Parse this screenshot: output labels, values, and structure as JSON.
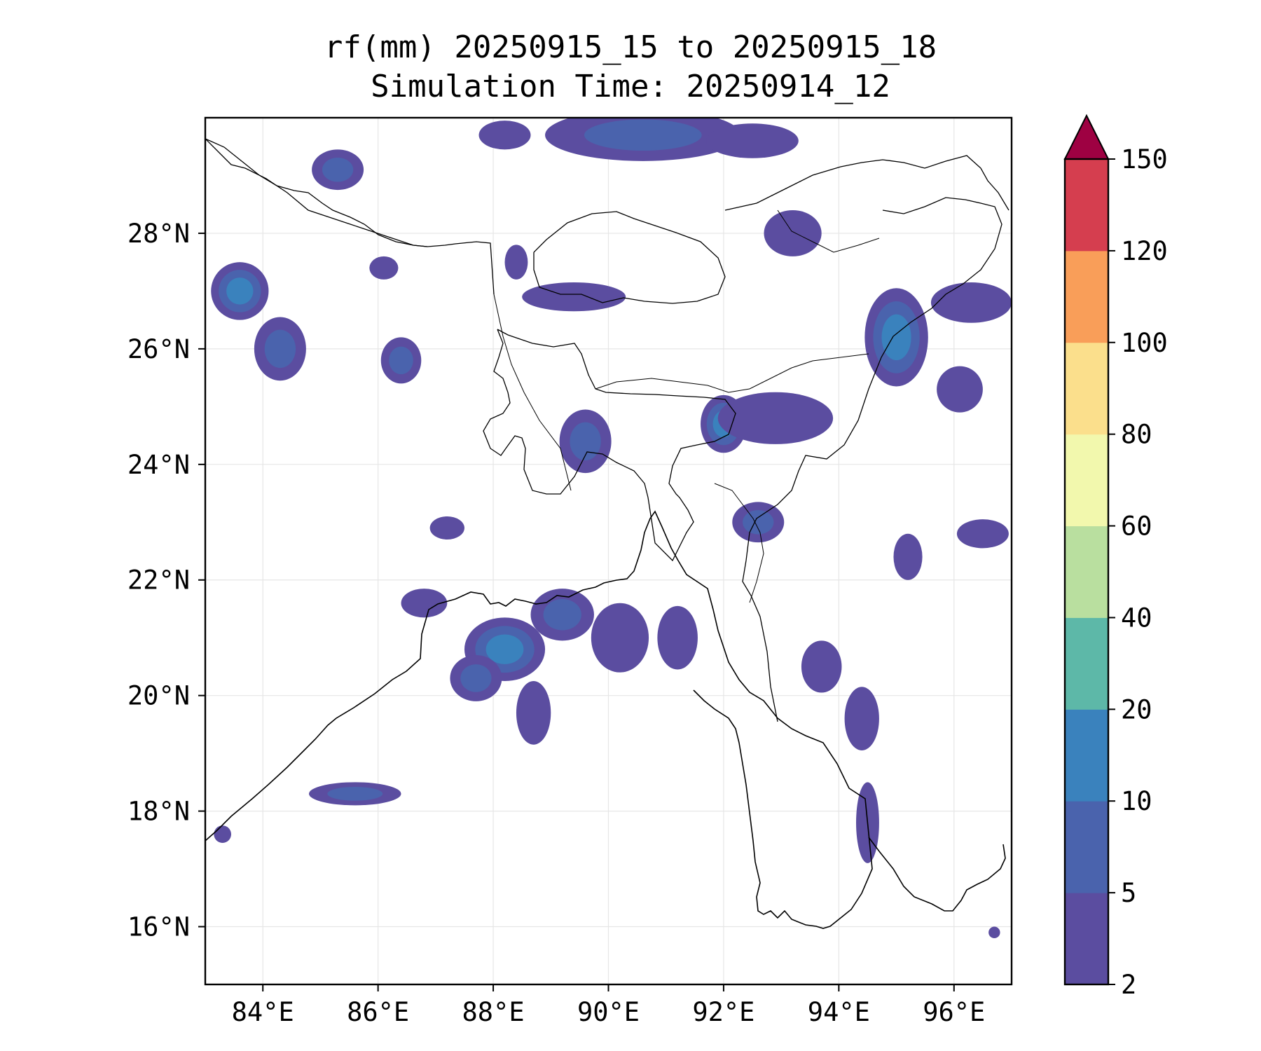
{
  "title": "rf(mm) 20250915_15 to 20250915_18",
  "subtitle": "Simulation Time: 20250914_12",
  "map": {
    "lon_range": [
      83,
      97
    ],
    "lat_range": [
      15,
      30
    ],
    "lon_ticks": [
      "84°E",
      "86°E",
      "88°E",
      "90°E",
      "92°E",
      "94°E",
      "96°E"
    ],
    "lat_ticks": [
      "16°N",
      "18°N",
      "20°N",
      "22°N",
      "24°N",
      "26°N",
      "28°N"
    ],
    "gridlines": true
  },
  "colorbar": {
    "levels": [
      "2",
      "5",
      "10",
      "20",
      "40",
      "60",
      "80",
      "100",
      "120",
      "150"
    ],
    "colors": [
      "#5b4da0",
      "#4a63ad",
      "#3a82bd",
      "#5db8a8",
      "#b9df9f",
      "#f2f8ad",
      "#fbdf8c",
      "#f99e59",
      "#d53e4f"
    ],
    "extend_color": "#9e0142",
    "extend": "max"
  },
  "rain_cells": [
    {
      "lon": 85.3,
      "lat": 29.1,
      "rx": 0.45,
      "ry": 0.35,
      "level": 2
    },
    {
      "lon": 83.6,
      "lat": 27.0,
      "rx": 0.5,
      "ry": 0.5,
      "level": 3
    },
    {
      "lon": 84.3,
      "lat": 26.0,
      "rx": 0.45,
      "ry": 0.55,
      "level": 2
    },
    {
      "lon": 86.4,
      "lat": 25.8,
      "rx": 0.35,
      "ry": 0.4,
      "level": 2
    },
    {
      "lon": 86.1,
      "lat": 27.4,
      "rx": 0.25,
      "ry": 0.2,
      "level": 1
    },
    {
      "lon": 88.2,
      "lat": 29.7,
      "rx": 0.45,
      "ry": 0.25,
      "level": 1
    },
    {
      "lon": 90.6,
      "lat": 29.7,
      "rx": 1.7,
      "ry": 0.45,
      "level": 2
    },
    {
      "lon": 92.5,
      "lat": 29.6,
      "rx": 0.8,
      "ry": 0.3,
      "level": 1
    },
    {
      "lon": 89.4,
      "lat": 26.9,
      "rx": 0.9,
      "ry": 0.25,
      "level": 1
    },
    {
      "lon": 88.4,
      "lat": 27.5,
      "rx": 0.2,
      "ry": 0.3,
      "level": 1
    },
    {
      "lon": 89.6,
      "lat": 24.4,
      "rx": 0.45,
      "ry": 0.55,
      "level": 2
    },
    {
      "lon": 92.0,
      "lat": 24.7,
      "rx": 0.4,
      "ry": 0.5,
      "level": 3
    },
    {
      "lon": 92.9,
      "lat": 24.8,
      "rx": 1.0,
      "ry": 0.45,
      "level": 1
    },
    {
      "lon": 95.0,
      "lat": 26.2,
      "rx": 0.55,
      "ry": 0.85,
      "level": 3
    },
    {
      "lon": 96.3,
      "lat": 26.8,
      "rx": 0.7,
      "ry": 0.35,
      "level": 1
    },
    {
      "lon": 96.1,
      "lat": 25.3,
      "rx": 0.4,
      "ry": 0.4,
      "level": 1
    },
    {
      "lon": 93.2,
      "lat": 28.0,
      "rx": 0.5,
      "ry": 0.4,
      "level": 1
    },
    {
      "lon": 92.6,
      "lat": 23.0,
      "rx": 0.45,
      "ry": 0.35,
      "level": 2
    },
    {
      "lon": 88.2,
      "lat": 20.8,
      "rx": 0.7,
      "ry": 0.55,
      "level": 3
    },
    {
      "lon": 89.2,
      "lat": 21.4,
      "rx": 0.55,
      "ry": 0.45,
      "level": 2
    },
    {
      "lon": 90.2,
      "lat": 21.0,
      "rx": 0.5,
      "ry": 0.6,
      "level": 1
    },
    {
      "lon": 87.7,
      "lat": 20.3,
      "rx": 0.45,
      "ry": 0.4,
      "level": 2
    },
    {
      "lon": 91.2,
      "lat": 21.0,
      "rx": 0.35,
      "ry": 0.55,
      "level": 1
    },
    {
      "lon": 88.7,
      "lat": 19.7,
      "rx": 0.3,
      "ry": 0.55,
      "level": 1
    },
    {
      "lon": 93.7,
      "lat": 20.5,
      "rx": 0.35,
      "ry": 0.45,
      "level": 1
    },
    {
      "lon": 94.4,
      "lat": 19.6,
      "rx": 0.3,
      "ry": 0.55,
      "level": 1
    },
    {
      "lon": 94.5,
      "lat": 17.8,
      "rx": 0.2,
      "ry": 0.7,
      "level": 1
    },
    {
      "lon": 85.6,
      "lat": 18.3,
      "rx": 0.8,
      "ry": 0.2,
      "level": 2
    },
    {
      "lon": 83.3,
      "lat": 17.6,
      "rx": 0.15,
      "ry": 0.15,
      "level": 1
    },
    {
      "lon": 95.2,
      "lat": 22.4,
      "rx": 0.25,
      "ry": 0.4,
      "level": 1
    },
    {
      "lon": 96.5,
      "lat": 22.8,
      "rx": 0.45,
      "ry": 0.25,
      "level": 1
    },
    {
      "lon": 86.8,
      "lat": 21.6,
      "rx": 0.4,
      "ry": 0.25,
      "level": 1
    },
    {
      "lon": 87.2,
      "lat": 22.9,
      "rx": 0.3,
      "ry": 0.2,
      "level": 1
    },
    {
      "lon": 96.7,
      "lat": 15.9,
      "rx": 0.1,
      "ry": 0.1,
      "level": 1
    }
  ]
}
